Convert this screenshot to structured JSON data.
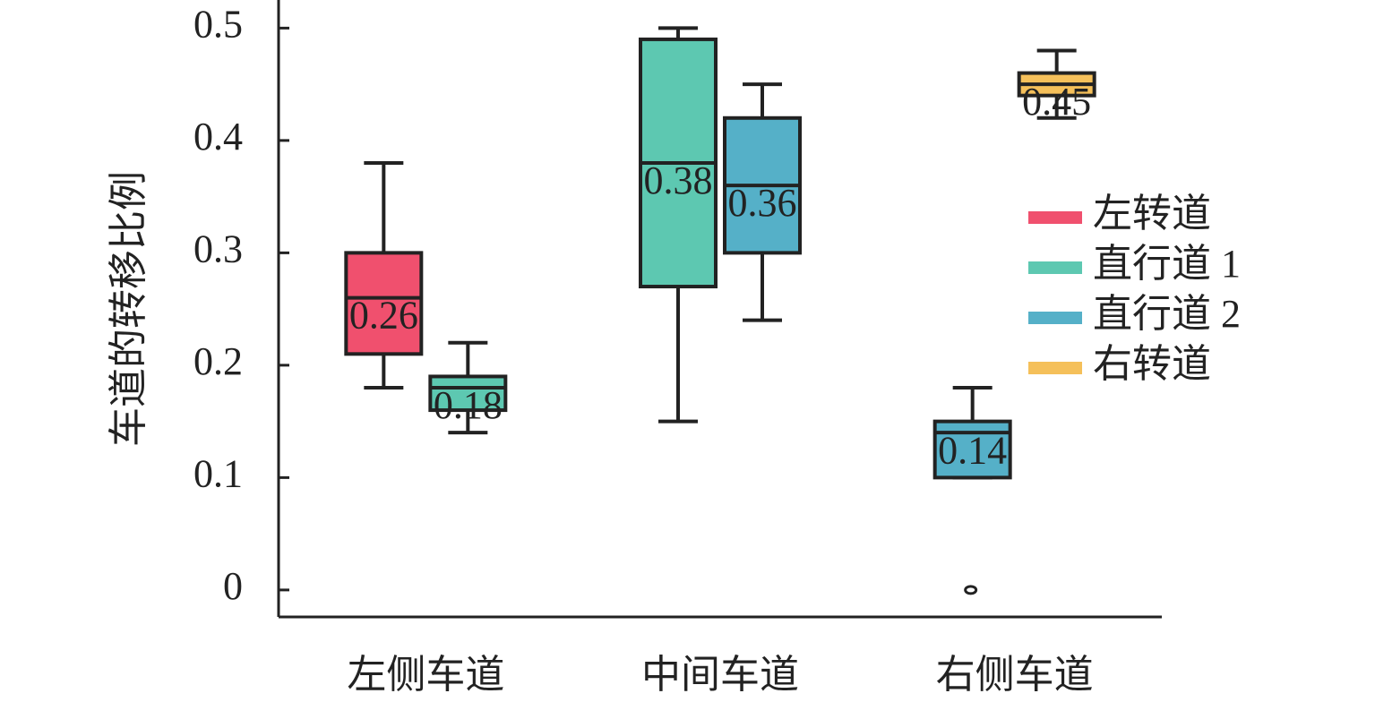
{
  "chart_data": {
    "type": "box",
    "ylabel": "车道的转移比例",
    "categories": [
      "左侧车道",
      "中间车道",
      "右侧车道"
    ],
    "ylim": [
      -0.024,
      0.525
    ],
    "yticks": [
      0,
      0.1,
      0.2,
      0.3,
      0.4,
      0.5
    ],
    "legend": "right",
    "series": [
      {
        "name": "左转道",
        "color": "#f0506e",
        "min": [
          0.18,
          null,
          null
        ],
        "q1": [
          0.21,
          null,
          null
        ],
        "median": [
          0.26,
          null,
          null
        ],
        "q3": [
          0.3,
          null,
          null
        ],
        "max": [
          0.38,
          null,
          null
        ],
        "outliers": [
          [],
          [],
          []
        ]
      },
      {
        "name": "直行道 1",
        "color": "#5dc8b1",
        "min": [
          0.14,
          0.15,
          null
        ],
        "q1": [
          0.16,
          0.27,
          null
        ],
        "median": [
          0.18,
          0.38,
          null
        ],
        "q3": [
          0.19,
          0.49,
          null
        ],
        "max": [
          0.22,
          0.5,
          null
        ],
        "outliers": [
          [],
          [],
          []
        ]
      },
      {
        "name": "直行道 2",
        "color": "#55b0c8",
        "min": [
          null,
          0.24,
          0.1
        ],
        "q1": [
          null,
          0.3,
          0.1
        ],
        "median": [
          null,
          0.36,
          0.14
        ],
        "q3": [
          null,
          0.42,
          0.15
        ],
        "max": [
          null,
          0.45,
          0.18
        ],
        "outliers": [
          [],
          [],
          [
            0
          ]
        ]
      },
      {
        "name": "右转道",
        "color": "#f5c05a",
        "min": [
          null,
          null,
          0.42
        ],
        "q1": [
          null,
          null,
          0.44
        ],
        "median": [
          null,
          null,
          0.45
        ],
        "q3": [
          null,
          null,
          0.46
        ],
        "max": [
          null,
          null,
          0.48
        ],
        "outliers": [
          [],
          [],
          []
        ]
      }
    ]
  }
}
